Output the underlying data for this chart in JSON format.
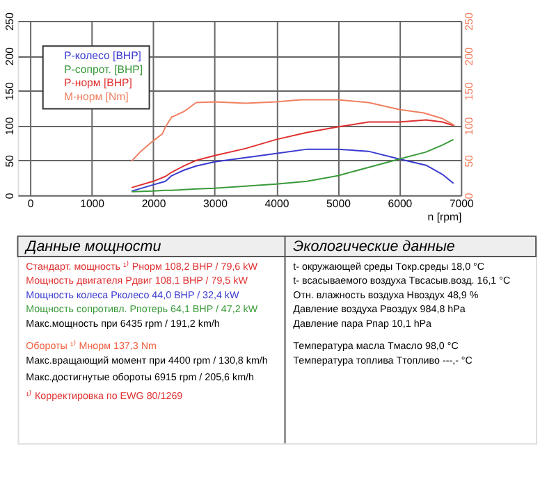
{
  "chart_data": {
    "type": "line",
    "xlabel": "n [rpm]",
    "x": [
      1650,
      2000,
      2200,
      2300,
      2500,
      2700,
      3000,
      3500,
      4000,
      4500,
      5000,
      5500,
      6000,
      6435,
      6700,
      6880
    ],
    "series": [
      {
        "name": "P-колесо [BHP]",
        "color": "#3a3ad0",
        "values": [
          6,
          15,
          20,
          28,
          36,
          42,
          48,
          54,
          60,
          66,
          66,
          63,
          52,
          43,
          30,
          17
        ]
      },
      {
        "name": "P-сопрот. [BHP]",
        "color": "#3a9a3a",
        "values": [
          5,
          6,
          7,
          7,
          8,
          9,
          10,
          13,
          16,
          20,
          28,
          40,
          52,
          62,
          72,
          80
        ]
      },
      {
        "name": "P-норм [BHP]",
        "color": "#e03030",
        "values": [
          11,
          20,
          27,
          33,
          42,
          50,
          57,
          67,
          80,
          90,
          98,
          105,
          105,
          108,
          105,
          100
        ]
      },
      {
        "name": "M-норм [Nm]",
        "color": "#f08060",
        "axis": "y2",
        "x": [
          1650,
          1800,
          2000,
          2150,
          2200,
          2300,
          2500,
          2700,
          3000,
          3500,
          4000,
          4400,
          5000,
          5500,
          6000,
          6400,
          6700,
          6900
        ],
        "values": [
          49,
          63,
          78,
          88,
          98,
          112,
          120,
          133,
          134,
          132,
          134,
          137,
          137,
          133,
          123,
          118,
          110,
          100
        ]
      }
    ],
    "xlim": [
      -200,
      7000
    ],
    "xticks": [
      0,
      1000,
      2000,
      3000,
      4000,
      5000,
      6000,
      7000
    ],
    "ylim": [
      0,
      250
    ],
    "yticks": [
      0,
      50,
      100,
      150,
      200,
      250
    ],
    "y2lim": [
      0,
      250
    ],
    "y2ticks": [
      0,
      50,
      100,
      150,
      200,
      250
    ],
    "grid": true,
    "legend": "top left",
    "marker": "none",
    "line_style": "solid",
    "annotations": [
      "Данные мощности",
      "Стандарт. мощность ¹⁾ Pнорм 108,2 BHP / 79,6 kW",
      "Мощность двигателя Pдвиг 108,1 BHP / 79,5 kW",
      "Мощность колеса Pколесо 44,0 BHP / 32,4 kW",
      "Мощность сопротивл. Pпотерь 64,1 BHP / 47,2 kW",
      "Макс.мощность при 6435 rpm / 191,2 km/h",
      "Обороты ¹⁾ Mнорм 137,3 Nm",
      "Макс.вращающий момент при 4400 rpm / 130,8 km/h",
      "Макс.достигнутые обороты 6915 rpm / 205,6 km/h",
      "¹⁾ Корректировка по EWG 80/1269",
      "Экологические данные",
      "t- окружающей среды Tокр.среды 18,0 °C",
      "t- всасываемого воздуха Tвсасыв.возд. 16,1 °C",
      "Отн. влажность воздуха Hвоздух 48,9 %",
      "Давление воздуха Pвоздух 984,8 hPa",
      "Давление пара Pпар 10,1 hPa",
      "Температура масла Tмасло 98,0 °C",
      "Температура топлива Tтопливо ---,- °C"
    ]
  }
}
